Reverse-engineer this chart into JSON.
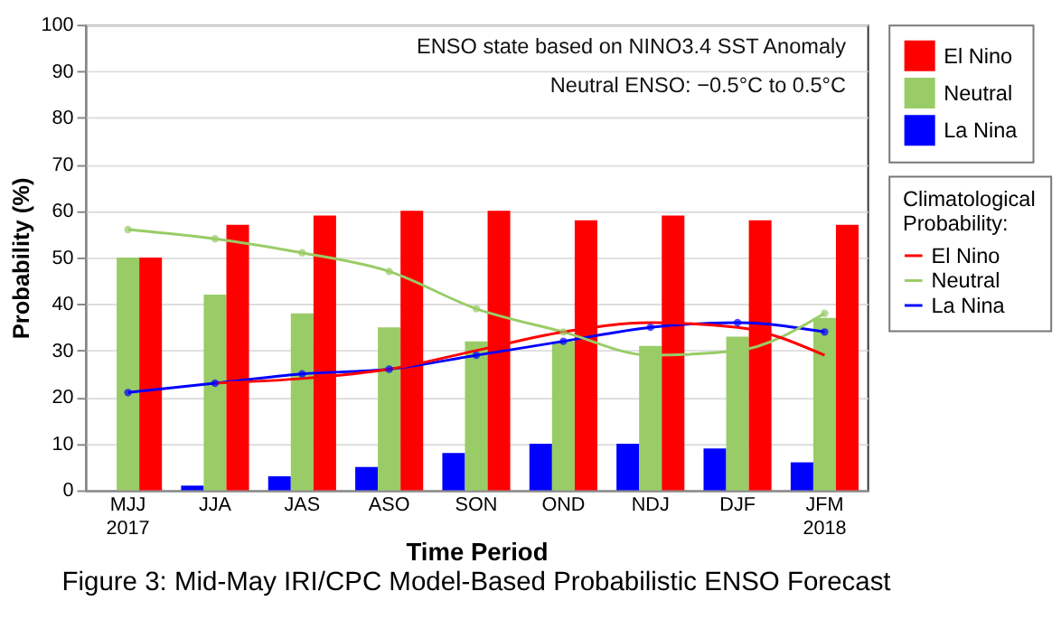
{
  "chart_data": {
    "type": "bar",
    "title": "Figure 3: Mid-May IRI/CPC Model-Based Probabilistic ENSO Forecast",
    "xlabel": "Time Period",
    "ylabel": "Probability (%)",
    "legend_title": "Climatological Probability:",
    "categories": [
      "MJJ\n2017",
      "JJA",
      "JAS",
      "ASO",
      "SON",
      "OND",
      "NDJ",
      "DJF",
      "JFM\n2018"
    ],
    "series": [
      {
        "name": "La Nina",
        "color": "#0000ff",
        "values": [
          0,
          1,
          3,
          5,
          8,
          10,
          10,
          9,
          6
        ]
      },
      {
        "name": "Neutral",
        "color": "#99cc66",
        "values": [
          50,
          42,
          38,
          35,
          32,
          32,
          31,
          33,
          37
        ]
      },
      {
        "name": "El Nino",
        "color": "#ff0000",
        "values": [
          50,
          57,
          59,
          60,
          60,
          58,
          59,
          58,
          57
        ]
      },
      {
        "name": "El Nino",
        "type": "line",
        "marker": "none",
        "color": "#ff0000",
        "values": [
          null,
          23,
          24,
          26,
          30,
          34,
          36,
          35,
          29
        ]
      },
      {
        "name": "Neutral",
        "type": "line",
        "marker": "circle",
        "color": "#99cc66",
        "values": [
          56,
          54,
          51,
          47,
          39,
          34,
          29,
          30,
          38
        ]
      },
      {
        "name": "La Nina",
        "type": "line",
        "marker": "circle",
        "color": "#0000ff",
        "values": [
          21,
          23,
          25,
          26,
          29,
          32,
          35,
          36,
          34
        ]
      }
    ],
    "annotations": [
      "ENSO state based on NINO3.4 SST Anomaly",
      "Neutral ENSO: −0.5°C to 0.5°C"
    ],
    "ylim": [
      0,
      100
    ],
    "yticks": [
      0,
      10,
      20,
      30,
      40,
      50,
      60,
      70,
      80,
      90,
      100
    ],
    "grid": "y",
    "legend": "right"
  }
}
